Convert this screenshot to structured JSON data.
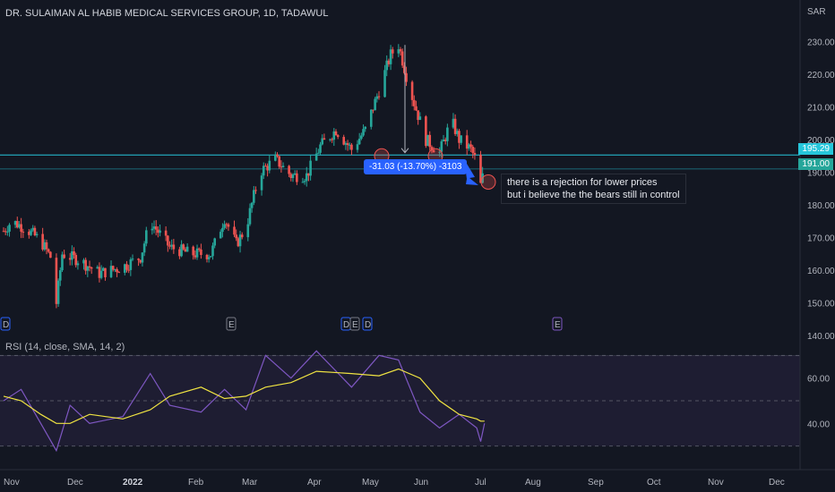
{
  "header": {
    "title": "DR. SULAIMAN AL HABIB MEDICAL SERVICES GROUP, 1D, TADAWUL",
    "currency": "SAR"
  },
  "colors": {
    "background": "#131722",
    "up": "#26a69a",
    "down": "#ef5350",
    "level_line": "#26c6da",
    "rsi_line": "#7e57c2",
    "rsi_ma": "#f0e442",
    "measure_box": "#2962ff"
  },
  "price_tags": {
    "upper": "195.29",
    "lower": "191.00"
  },
  "measure_label": "-31.03 (-13.70%) -3103",
  "annotation": {
    "line1": "there is a rejection for lower prices",
    "line2": "but i believe the the bears still in control"
  },
  "event_markers": [
    "D",
    "E",
    "D",
    "E",
    "D",
    "E"
  ],
  "rsi_panel": {
    "title": "RSI (14, close, SMA, 14, 2)",
    "axis_labels": [
      "60.00",
      "40.00"
    ]
  },
  "chart_data": {
    "type": "candlestick",
    "title": "DR. SULAIMAN AL HABIB MEDICAL SERVICES GROUP, 1D, TADAWUL",
    "y_axis_label": "SAR",
    "ylim": [
      140,
      234
    ],
    "y_ticks": [
      140,
      150,
      160,
      170,
      180,
      190,
      200,
      210,
      220,
      230
    ],
    "x_tick_labels": [
      "Nov",
      "Dec",
      "2022",
      "Feb",
      "Mar",
      "Apr",
      "May",
      "Jun",
      "Jul",
      "Aug",
      "Sep",
      "Oct",
      "Nov",
      "Dec"
    ],
    "price_path": [
      {
        "date": "2021-11-01",
        "close": 172
      },
      {
        "date": "2021-11-05",
        "close": 175
      },
      {
        "date": "2021-11-12",
        "close": 173
      },
      {
        "date": "2021-11-20",
        "close": 169
      },
      {
        "date": "2021-11-25",
        "close": 164
      },
      {
        "date": "2021-11-28",
        "close": 150
      },
      {
        "date": "2021-12-01",
        "close": 165
      },
      {
        "date": "2021-12-10",
        "close": 163
      },
      {
        "date": "2021-12-20",
        "close": 159
      },
      {
        "date": "2022-01-01",
        "close": 161
      },
      {
        "date": "2022-01-10",
        "close": 164
      },
      {
        "date": "2022-01-15",
        "close": 175
      },
      {
        "date": "2022-01-25",
        "close": 167
      },
      {
        "date": "2022-02-05",
        "close": 165
      },
      {
        "date": "2022-02-15",
        "close": 165
      },
      {
        "date": "2022-02-22",
        "close": 176
      },
      {
        "date": "2022-02-28",
        "close": 168
      },
      {
        "date": "2022-03-05",
        "close": 173
      },
      {
        "date": "2022-03-12",
        "close": 190
      },
      {
        "date": "2022-03-20",
        "close": 194
      },
      {
        "date": "2022-03-28",
        "close": 189
      },
      {
        "date": "2022-04-05",
        "close": 189
      },
      {
        "date": "2022-04-12",
        "close": 198
      },
      {
        "date": "2022-04-20",
        "close": 203
      },
      {
        "date": "2022-04-28",
        "close": 197
      },
      {
        "date": "2022-05-05",
        "close": 203
      },
      {
        "date": "2022-05-12",
        "close": 215
      },
      {
        "date": "2022-05-18",
        "close": 226
      },
      {
        "date": "2022-05-22",
        "close": 229
      },
      {
        "date": "2022-05-28",
        "close": 215
      },
      {
        "date": "2022-06-05",
        "close": 200
      },
      {
        "date": "2022-06-12",
        "close": 196
      },
      {
        "date": "2022-06-18",
        "close": 206
      },
      {
        "date": "2022-06-22",
        "close": 200
      },
      {
        "date": "2022-06-28",
        "close": 197
      },
      {
        "date": "2022-07-01",
        "close": 193
      },
      {
        "date": "2022-07-03",
        "close": 186
      },
      {
        "date": "2022-07-05",
        "close": 191
      }
    ],
    "horizontal_levels": [
      195.29,
      191.0
    ],
    "rsi": {
      "name": "RSI (14, close, SMA, 14, 2)",
      "ylim": [
        20,
        80
      ],
      "bands": [
        70,
        50,
        30
      ],
      "axis_ticks": [
        60,
        40
      ],
      "values": [
        {
          "date": "2021-11-01",
          "rsi": 50,
          "ma": 52
        },
        {
          "date": "2021-11-10",
          "rsi": 55,
          "ma": 50
        },
        {
          "date": "2021-11-20",
          "rsi": 40,
          "ma": 44
        },
        {
          "date": "2021-11-28",
          "rsi": 28,
          "ma": 40
        },
        {
          "date": "2021-12-05",
          "rsi": 48,
          "ma": 40
        },
        {
          "date": "2021-12-15",
          "rsi": 40,
          "ma": 44
        },
        {
          "date": "2022-01-01",
          "rsi": 43,
          "ma": 42
        },
        {
          "date": "2022-01-15",
          "rsi": 62,
          "ma": 46
        },
        {
          "date": "2022-01-25",
          "rsi": 48,
          "ma": 52
        },
        {
          "date": "2022-02-10",
          "rsi": 45,
          "ma": 56
        },
        {
          "date": "2022-02-22",
          "rsi": 55,
          "ma": 51
        },
        {
          "date": "2022-03-05",
          "rsi": 46,
          "ma": 52
        },
        {
          "date": "2022-03-15",
          "rsi": 70,
          "ma": 56
        },
        {
          "date": "2022-03-28",
          "rsi": 60,
          "ma": 58
        },
        {
          "date": "2022-04-10",
          "rsi": 72,
          "ma": 63
        },
        {
          "date": "2022-04-28",
          "rsi": 56,
          "ma": 62
        },
        {
          "date": "2022-05-12",
          "rsi": 70,
          "ma": 61
        },
        {
          "date": "2022-05-22",
          "rsi": 68,
          "ma": 64
        },
        {
          "date": "2022-06-02",
          "rsi": 45,
          "ma": 60
        },
        {
          "date": "2022-06-12",
          "rsi": 38,
          "ma": 50
        },
        {
          "date": "2022-06-22",
          "rsi": 44,
          "ma": 44
        },
        {
          "date": "2022-07-01",
          "rsi": 38,
          "ma": 42
        },
        {
          "date": "2022-07-03",
          "rsi": 32,
          "ma": 41
        },
        {
          "date": "2022-07-05",
          "rsi": 40,
          "ma": 41
        }
      ]
    }
  }
}
